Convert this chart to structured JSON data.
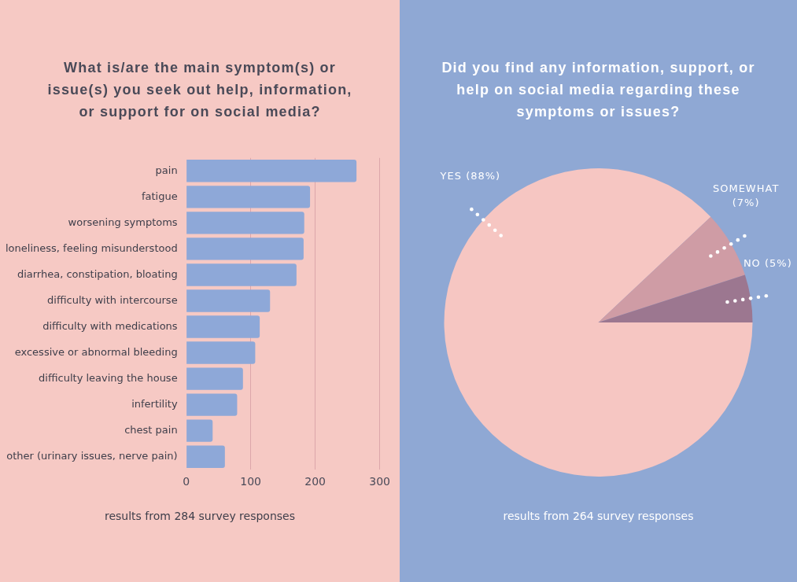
{
  "chart_data": [
    {
      "type": "bar",
      "orientation": "horizontal",
      "title": "What is/are the main symptom(s) or issue(s) you seek out help, information, or support for on social media?",
      "categories": [
        "pain",
        "fatigue",
        "worsening symptoms",
        "loneliness, feeling misunderstood",
        "diarrhea, constipation, bloating",
        "difficulty with intercourse",
        "difficulty with medications",
        "excessive or abnormal bleeding",
        "difficulty leaving the house",
        "infertility",
        "chest pain",
        "other (urinary issues, nerve pain)"
      ],
      "values": [
        264,
        192,
        183,
        182,
        171,
        130,
        114,
        107,
        88,
        79,
        41,
        60
      ],
      "color": "#8ea8d8",
      "xlim": [
        0,
        300
      ],
      "xticks": [
        0,
        100,
        200,
        300
      ],
      "grid": "x",
      "legend": false,
      "annotations": [
        "results from 284 survey responses"
      ]
    },
    {
      "type": "pie",
      "title": "Did you find any information, support, or help on social media regarding these symptoms or issues?",
      "categories": [
        "YES",
        "SOMEWHAT",
        "NO"
      ],
      "values": [
        88,
        7,
        5
      ],
      "colors": [
        "#f6c6c2",
        "#cf9ca5",
        "#9c7790"
      ],
      "value_labels": [
        "(88%)",
        "(7%)",
        "(5%)"
      ],
      "legend": false,
      "annotations": [
        "results from 264 survey responses"
      ]
    }
  ]
}
